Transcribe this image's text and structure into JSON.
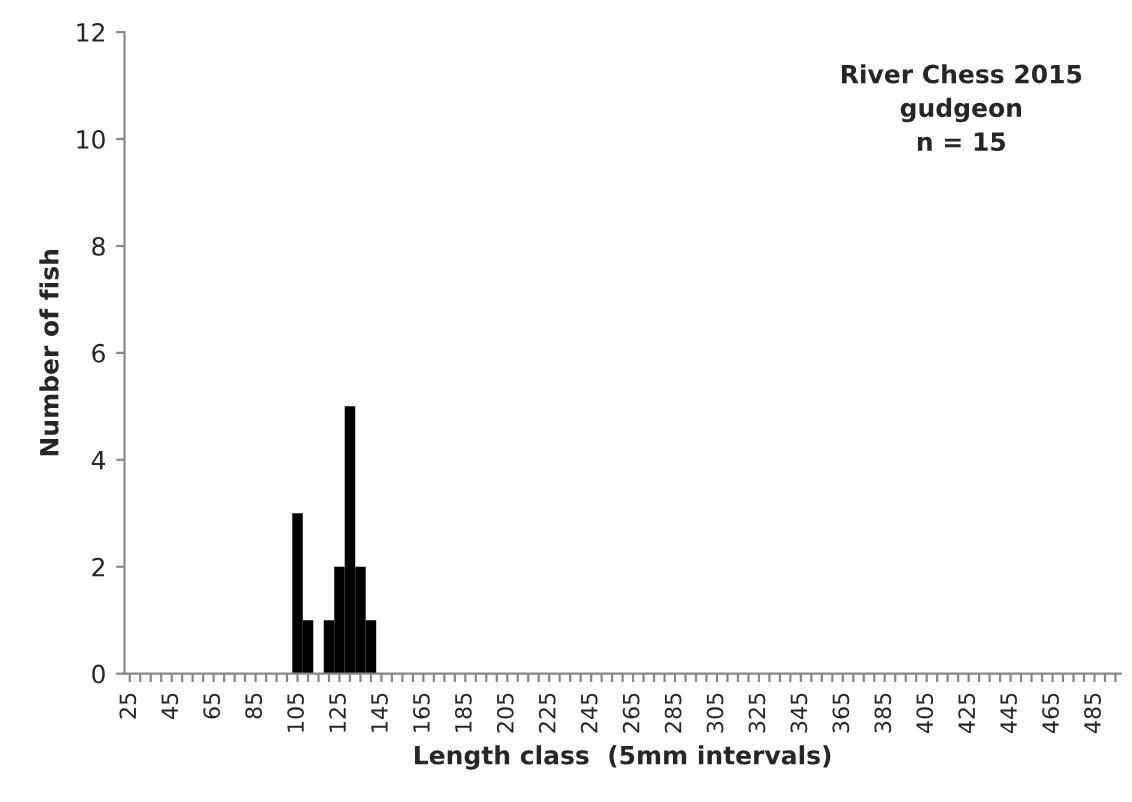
{
  "chart_data": {
    "type": "bar",
    "xlabel": "Length class  (5mm intervals)",
    "ylabel": "Number of fish",
    "annotations": [
      "River Chess 2015\ngudgeon\nn = 15"
    ],
    "categories": [
      "25",
      null,
      null,
      null,
      "45",
      null,
      null,
      null,
      "65",
      null,
      null,
      null,
      "85",
      null,
      null,
      null,
      "105",
      null,
      null,
      null,
      "125",
      null,
      null,
      null,
      "145",
      null,
      null,
      null,
      "165",
      null,
      null,
      null,
      "185",
      null,
      null,
      null,
      "205",
      null,
      null,
      null,
      "225",
      null,
      null,
      null,
      "245",
      null,
      null,
      null,
      "265",
      null,
      null,
      null,
      "285",
      null,
      null,
      null,
      "305",
      null,
      null,
      null,
      "325",
      null,
      null,
      null,
      "345",
      null,
      null,
      null,
      "365",
      null,
      null,
      null,
      "385",
      null,
      null,
      null,
      "405",
      null,
      null,
      null,
      "425",
      null,
      null,
      null,
      "445",
      null,
      null,
      null,
      "465",
      null,
      null,
      null,
      "485",
      null,
      null
    ],
    "values": [
      0,
      0,
      0,
      0,
      0,
      0,
      0,
      0,
      0,
      0,
      0,
      0,
      0,
      0,
      0,
      0,
      3,
      1,
      0,
      1,
      2,
      5,
      2,
      1,
      0,
      0,
      0,
      0,
      0,
      0,
      0,
      0,
      0,
      0,
      0,
      0,
      0,
      0,
      0,
      0,
      0,
      0,
      0,
      0,
      0,
      0,
      0,
      0,
      0,
      0,
      0,
      0,
      0,
      0,
      0,
      0,
      0,
      0,
      0,
      0,
      0,
      0,
      0,
      0,
      0,
      0,
      0,
      0,
      0,
      0,
      0,
      0,
      0,
      0,
      0,
      0,
      0,
      0,
      0,
      0,
      0,
      0,
      0,
      0,
      0,
      0,
      0,
      0,
      0,
      0,
      0,
      0,
      0,
      0,
      0
    ],
    "color": "#000000",
    "ylim": [
      0,
      12
    ],
    "yticks": [
      0,
      2,
      4,
      6,
      8,
      10,
      12
    ],
    "grid": false,
    "legend": false
  }
}
